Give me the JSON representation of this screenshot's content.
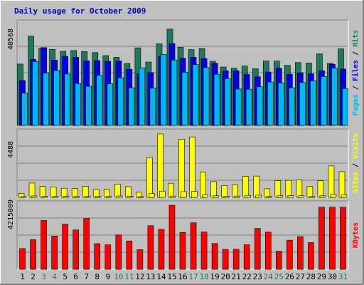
{
  "colors": {
    "background": "#c0c0c0",
    "plot": "#c0c0c0",
    "title": "#0000c0",
    "hits": "#1e7a5a",
    "files": "#0000e0",
    "pages": "#00b7f0",
    "sites": "#ffff00",
    "visits": "#ffff00",
    "kbytes": "#ff0000",
    "weekend_label": "#1e7a5a",
    "weekday_label": "#000000"
  },
  "chart_data": [
    {
      "type": "bar",
      "title": "Daily usage for October 2009",
      "panel": "hits-files-pages",
      "ylabel_parts": [
        "Pages",
        "Files",
        "Hits"
      ],
      "ymax_label": "40568",
      "ylim": [
        0,
        40568
      ],
      "categories": [
        "1",
        "2",
        "3",
        "4",
        "5",
        "6",
        "7",
        "8",
        "9",
        "10",
        "11",
        "12",
        "13",
        "14",
        "15",
        "16",
        "17",
        "18",
        "19",
        "20",
        "21",
        "22",
        "23",
        "24",
        "25",
        "26",
        "27",
        "28",
        "29",
        "30",
        "31"
      ],
      "weekend_days": [
        "3",
        "4",
        "10",
        "11",
        "17",
        "18",
        "24",
        "25",
        "31"
      ],
      "series": [
        {
          "name": "Hits",
          "values": [
            24600,
            35800,
            30900,
            30500,
            29700,
            30000,
            29600,
            29200,
            28000,
            27300,
            24800,
            31100,
            25400,
            32700,
            38600,
            31300,
            30400,
            30800,
            25700,
            23400,
            22900,
            23800,
            22700,
            25800,
            25800,
            24100,
            25200,
            25000,
            28700,
            24900,
            30700
          ]
        },
        {
          "name": "Files",
          "values": [
            18000,
            26500,
            31200,
            26200,
            27700,
            27300,
            25900,
            26000,
            25700,
            25800,
            22500,
            20700,
            21200,
            27600,
            32800,
            26900,
            27300,
            26800,
            24900,
            21900,
            21900,
            20400,
            19500,
            21400,
            22900,
            20500,
            21100,
            20700,
            21900,
            24500,
            22600
          ]
        },
        {
          "name": "Pages",
          "values": [
            13000,
            25600,
            21000,
            22000,
            20600,
            16800,
            15700,
            20100,
            16700,
            19100,
            15100,
            23100,
            14900,
            28500,
            26200,
            21300,
            24400,
            23200,
            20500,
            18800,
            14600,
            14500,
            15500,
            17400,
            17000,
            15100,
            17200,
            17900,
            19600,
            23000,
            14800
          ]
        }
      ]
    },
    {
      "type": "bar",
      "panel": "sites-visits",
      "ylabel_parts": [
        "Sites",
        "Visits"
      ],
      "ymax_label": "4488",
      "ylim": [
        0,
        4488
      ],
      "categories": [
        "1",
        "2",
        "3",
        "4",
        "5",
        "6",
        "7",
        "8",
        "9",
        "10",
        "11",
        "12",
        "13",
        "14",
        "15",
        "16",
        "17",
        "18",
        "19",
        "20",
        "21",
        "22",
        "23",
        "24",
        "25",
        "26",
        "27",
        "28",
        "29",
        "30",
        "31"
      ],
      "series": [
        {
          "name": "Sites",
          "values": [
            270,
            1000,
            760,
            730,
            640,
            620,
            770,
            550,
            570,
            930,
            750,
            360,
            2790,
            4440,
            990,
            4070,
            4230,
            1780,
            1100,
            820,
            890,
            1480,
            1490,
            600,
            1170,
            1190,
            1220,
            760,
            1160,
            2200,
            1800
          ]
        },
        {
          "name": "Visits",
          "values": [
            50,
            100,
            70,
            70,
            70,
            60,
            70,
            60,
            60,
            100,
            70,
            40,
            270,
            440,
            90,
            400,
            420,
            170,
            110,
            80,
            90,
            140,
            150,
            60,
            110,
            120,
            120,
            70,
            110,
            210,
            170
          ]
        }
      ]
    },
    {
      "type": "bar",
      "panel": "kbytes",
      "ylabel_parts": [
        "KBytes"
      ],
      "ymax_label": "4215009",
      "ylim": [
        0,
        4215009
      ],
      "categories": [
        "1",
        "2",
        "3",
        "4",
        "5",
        "6",
        "7",
        "8",
        "9",
        "10",
        "11",
        "12",
        "13",
        "14",
        "15",
        "16",
        "17",
        "18",
        "19",
        "20",
        "21",
        "22",
        "23",
        "24",
        "25",
        "26",
        "27",
        "28",
        "29",
        "30",
        "31"
      ],
      "series": [
        {
          "name": "KBytes",
          "values": [
            1366000,
            1950000,
            3213000,
            2183000,
            2968000,
            2590000,
            3344000,
            1686000,
            1612000,
            2262000,
            1864000,
            1298000,
            2867000,
            2627000,
            4215000,
            2425000,
            3058000,
            2456000,
            1698000,
            1305000,
            1318000,
            1616000,
            2684000,
            2447000,
            1188000,
            1914000,
            2151000,
            1755000,
            4087000,
            4087000,
            4087000
          ]
        }
      ]
    }
  ]
}
